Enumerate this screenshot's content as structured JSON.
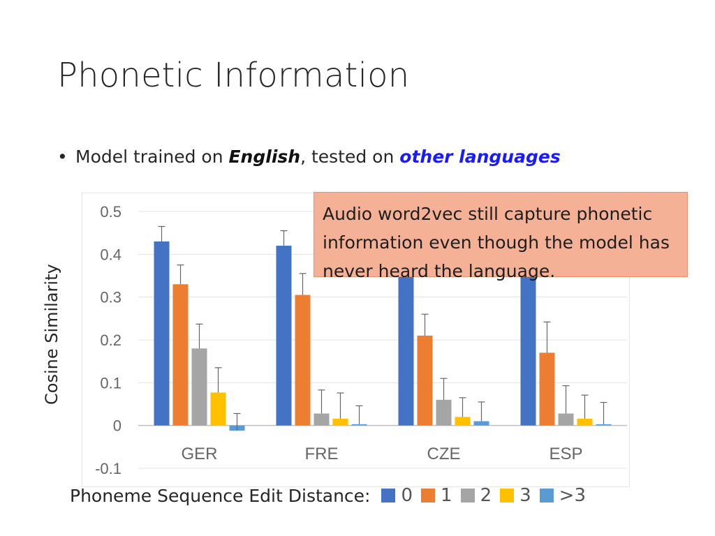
{
  "slide": {
    "title": "Phonetic Information",
    "bullet": {
      "prefix": "Model trained on ",
      "emphasis_1": "English",
      "middle": ", tested on ",
      "emphasis_2": "other languages"
    },
    "callout": "Audio word2vec still capture phonetic information even though the model has never heard the language."
  },
  "chart_data": {
    "type": "bar",
    "title": "",
    "xlabel": "",
    "ylabel": "Cosine Similarity",
    "ylim": [
      -0.1,
      0.5
    ],
    "yticks": [
      "0.5",
      "0.4",
      "0.3",
      "0.2",
      "0.1",
      "0",
      "-0.1"
    ],
    "categories": [
      "GER",
      "FRE",
      "CZE",
      "ESP"
    ],
    "legend_title": "Phoneme Sequence Edit Distance:",
    "legend_position": "bottom",
    "grid": true,
    "series": [
      {
        "name": "0",
        "color": "#4472c4",
        "values": [
          0.43,
          0.42,
          0.4,
          0.39
        ],
        "errors": [
          0.035,
          0.035,
          0.035,
          0.035
        ]
      },
      {
        "name": "1",
        "color": "#ed7d31",
        "values": [
          0.33,
          0.305,
          0.21,
          0.17
        ],
        "errors": [
          0.045,
          0.05,
          0.05,
          0.072
        ]
      },
      {
        "name": "2",
        "color": "#a5a5a5",
        "values": [
          0.18,
          0.028,
          0.06,
          0.028
        ],
        "errors": [
          0.057,
          0.055,
          0.05,
          0.065
        ]
      },
      {
        "name": "3",
        "color": "#ffc000",
        "values": [
          0.077,
          0.016,
          0.02,
          0.016
        ],
        "errors": [
          0.058,
          0.06,
          0.045,
          0.055
        ]
      },
      {
        "name": ">3",
        "color": "#5b9bd5",
        "values": [
          -0.012,
          0.003,
          0.01,
          0.003
        ],
        "errors": [
          0.04,
          0.043,
          0.045,
          0.051
        ]
      }
    ]
  }
}
